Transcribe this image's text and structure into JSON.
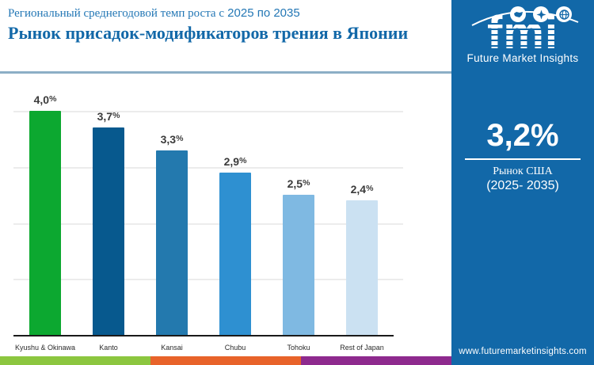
{
  "header": {
    "subtitle_text": "Региональный среднегодовой темп роста с",
    "subtitle_years": "2025 по 2035",
    "title": "Рынок присадок-модификаторов трения в Японии"
  },
  "chart_data": {
    "type": "bar",
    "categories": [
      "Kyushu & Okinawa",
      "Kanto",
      "Kansai",
      "Chubu",
      "Tohoku",
      "Rest of Japan"
    ],
    "values": [
      4.0,
      3.7,
      3.3,
      2.9,
      2.5,
      2.4
    ],
    "value_labels": [
      "4,0",
      "3,7",
      "3,3",
      "2,9",
      "2,5",
      "2,4"
    ],
    "value_suffix": "%",
    "bar_colors": [
      "#0ca830",
      "#07598e",
      "#2379ae",
      "#2e90d1",
      "#7fb9e2",
      "#cbe1f2"
    ],
    "title": "Рынок присадок-модификаторов трения в Японии",
    "xlabel": "",
    "ylabel": "",
    "ylim": [
      0,
      4.65
    ],
    "gridline_values": [
      1,
      2,
      3,
      4
    ],
    "grid": true,
    "legend": false
  },
  "sidebar": {
    "logo": {
      "text": "fmi",
      "tagline": "Future Market Insights",
      "icons": [
        "map-icon",
        "compass-icon",
        "globe-icon"
      ]
    },
    "stat": {
      "value": "3,2%",
      "label": "Рынок США",
      "period": "(2025- 2035)"
    },
    "url": "www.futuremarketinsights.com",
    "bg_color": "#1268a8"
  },
  "footer_stripes": [
    {
      "name": "green-stripe",
      "color": "#8cc63f"
    },
    {
      "name": "orange-stripe",
      "color": "#e8632a"
    },
    {
      "name": "purple-stripe",
      "color": "#8e2a8e"
    }
  ]
}
